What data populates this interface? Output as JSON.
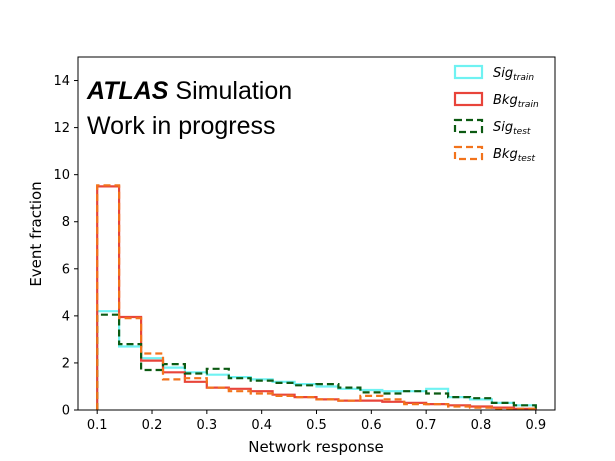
{
  "chart_data": {
    "type": "histogram",
    "xlabel": "Network response",
    "ylabel": "Event fraction",
    "xlim": [
      0.065,
      0.935
    ],
    "ylim": [
      0,
      15
    ],
    "xticks": [
      0.1,
      0.2,
      0.3,
      0.4,
      0.5,
      0.6,
      0.7,
      0.8,
      0.9
    ],
    "xtick_labels": [
      "0.1",
      "0.2",
      "0.3",
      "0.4",
      "0.5",
      "0.6",
      "0.7",
      "0.8",
      "0.9"
    ],
    "yticks": [
      0,
      2,
      4,
      6,
      8,
      10,
      12,
      14
    ],
    "ytick_labels": [
      "0",
      "2",
      "4",
      "6",
      "8",
      "10",
      "12",
      "14"
    ],
    "bin_edges": [
      0.1,
      0.14,
      0.18,
      0.22,
      0.26,
      0.3,
      0.34,
      0.38,
      0.42,
      0.46,
      0.5,
      0.54,
      0.58,
      0.62,
      0.66,
      0.7,
      0.74,
      0.78,
      0.82,
      0.86,
      0.9
    ],
    "annotation": {
      "bold": "ATLAS",
      "rest": " Simulation",
      "line2": "Work in progress"
    },
    "legend_position": "upper right",
    "series": [
      {
        "name_base": "Sig",
        "name_sub": "train",
        "color": "#6ff2f2",
        "style": "solid",
        "values": [
          4.2,
          2.7,
          2.2,
          1.8,
          1.6,
          1.5,
          1.4,
          1.3,
          1.2,
          1.1,
          1.0,
          0.9,
          0.85,
          0.8,
          0.8,
          0.9,
          0.55,
          0.45,
          0.3,
          0.2
        ]
      },
      {
        "name_base": "Bkg",
        "name_sub": "train",
        "color": "#e8443a",
        "style": "solid",
        "values": [
          9.5,
          3.95,
          2.1,
          1.6,
          1.2,
          0.95,
          0.9,
          0.8,
          0.65,
          0.55,
          0.45,
          0.4,
          0.4,
          0.35,
          0.3,
          0.25,
          0.2,
          0.15,
          0.1,
          0.05
        ]
      },
      {
        "name_base": "Sig",
        "name_sub": "test",
        "color": "#0c5a12",
        "style": "dashed",
        "values": [
          4.05,
          2.8,
          1.7,
          1.95,
          1.55,
          1.75,
          1.35,
          1.25,
          1.15,
          1.05,
          1.1,
          0.95,
          0.75,
          0.7,
          0.8,
          0.7,
          0.55,
          0.5,
          0.3,
          0.2
        ]
      },
      {
        "name_base": "Bkg",
        "name_sub": "test",
        "color": "#f2731c",
        "style": "dashed",
        "values": [
          9.55,
          3.9,
          2.4,
          1.3,
          1.35,
          0.95,
          0.8,
          0.7,
          0.6,
          0.55,
          0.45,
          0.4,
          0.6,
          0.45,
          0.25,
          0.25,
          0.15,
          0.1,
          0.05,
          0.05
        ]
      }
    ]
  }
}
